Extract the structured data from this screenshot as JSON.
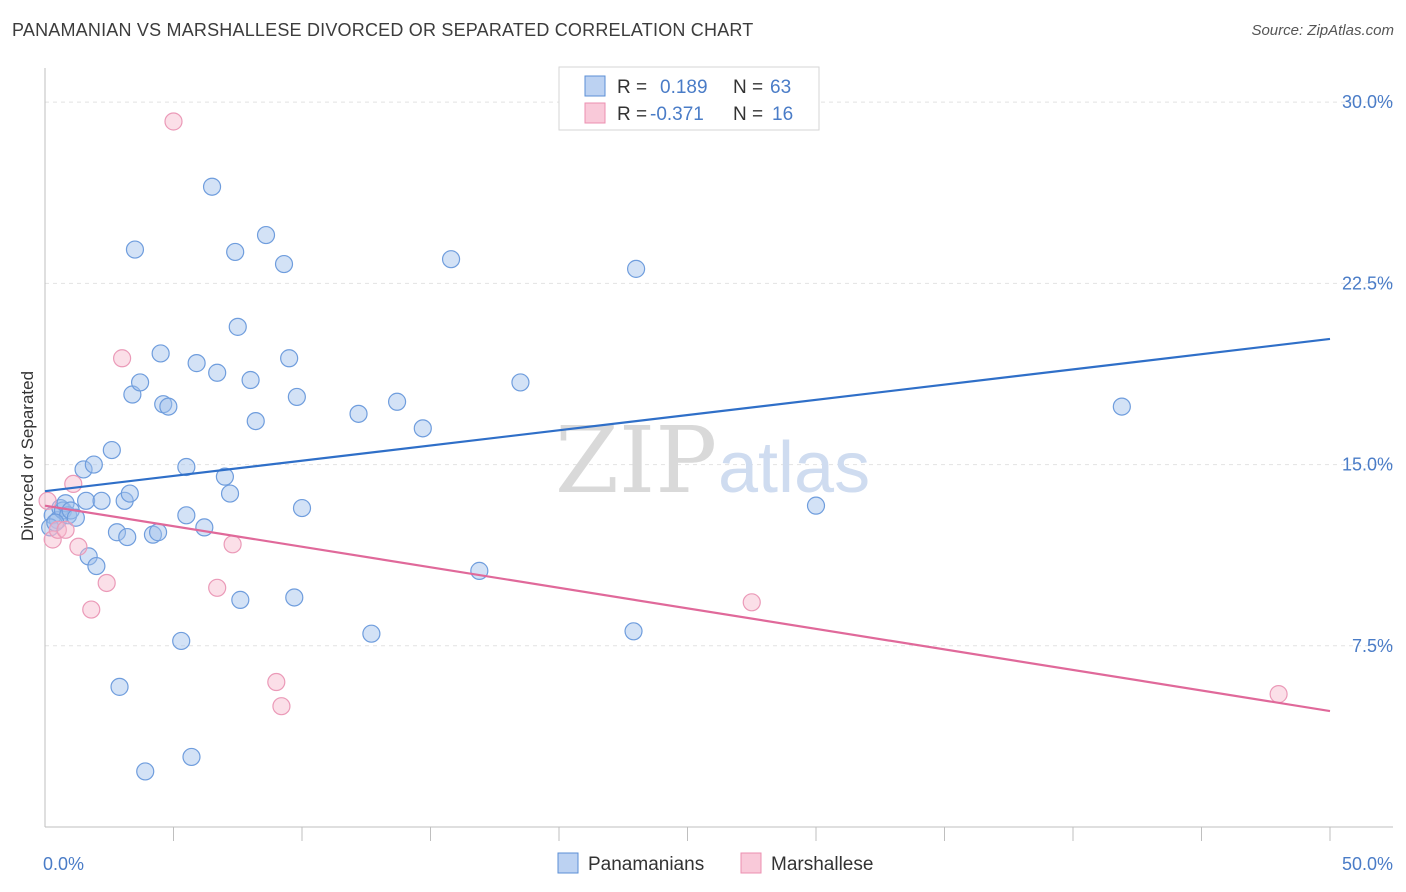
{
  "title": "PANAMANIAN VS MARSHALLESE DIVORCED OR SEPARATED CORRELATION CHART",
  "source": "Source: ZipAtlas.com",
  "colors": {
    "blue": "#5b8fd6",
    "blue_line": "#2f6fc8",
    "pink": "#ec8fb0",
    "pink_line": "#e0699a",
    "label": "#4a7cc7"
  },
  "chart_data": {
    "type": "scatter",
    "xlabel": "",
    "ylabel": "Divorced or Separated",
    "xlim": [
      0,
      50
    ],
    "ylim": [
      0,
      31
    ],
    "x_tick_labels": [
      {
        "value": 0,
        "label": "0.0%"
      },
      {
        "value": 50,
        "label": "50.0%"
      }
    ],
    "y_ticks": [
      {
        "value": 7.5,
        "label": "7.5%"
      },
      {
        "value": 15.0,
        "label": "15.0%"
      },
      {
        "value": 22.5,
        "label": "22.5%"
      },
      {
        "value": 30.0,
        "label": "30.0%"
      }
    ],
    "legend_stats": [
      {
        "r_label": "R =",
        "r": "0.189",
        "n_label": "N =",
        "n": "63"
      },
      {
        "r_label": "R =",
        "r": "-0.371",
        "n_label": "N =",
        "n": "16"
      }
    ],
    "series": [
      {
        "name": "Panamanians",
        "trend": {
          "x0": 0,
          "y0": 13.9,
          "x1": 50,
          "y1": 20.2
        },
        "points": [
          [
            0.3,
            12.9
          ],
          [
            0.5,
            12.7
          ],
          [
            0.6,
            13.2
          ],
          [
            0.7,
            13.1
          ],
          [
            0.8,
            13.4
          ],
          [
            0.9,
            12.9
          ],
          [
            1.0,
            13.1
          ],
          [
            1.2,
            12.8
          ],
          [
            1.5,
            14.8
          ],
          [
            1.6,
            13.5
          ],
          [
            1.7,
            11.2
          ],
          [
            1.9,
            15.0
          ],
          [
            2.0,
            10.8
          ],
          [
            2.2,
            13.5
          ],
          [
            2.6,
            15.6
          ],
          [
            2.8,
            12.2
          ],
          [
            2.9,
            5.8
          ],
          [
            3.1,
            13.5
          ],
          [
            3.2,
            12.0
          ],
          [
            3.3,
            13.8
          ],
          [
            3.4,
            17.9
          ],
          [
            3.5,
            23.9
          ],
          [
            3.7,
            18.4
          ],
          [
            3.9,
            2.3
          ],
          [
            4.2,
            12.1
          ],
          [
            4.4,
            12.2
          ],
          [
            4.5,
            19.6
          ],
          [
            4.6,
            17.5
          ],
          [
            4.8,
            17.4
          ],
          [
            5.3,
            7.7
          ],
          [
            5.5,
            14.9
          ],
          [
            5.5,
            12.9
          ],
          [
            5.7,
            2.9
          ],
          [
            5.9,
            19.2
          ],
          [
            6.2,
            12.4
          ],
          [
            6.5,
            26.5
          ],
          [
            6.7,
            18.8
          ],
          [
            7.0,
            14.5
          ],
          [
            7.2,
            13.8
          ],
          [
            7.4,
            23.8
          ],
          [
            7.5,
            20.7
          ],
          [
            7.6,
            9.4
          ],
          [
            8.0,
            18.5
          ],
          [
            8.2,
            16.8
          ],
          [
            8.6,
            24.5
          ],
          [
            9.3,
            23.3
          ],
          [
            9.5,
            19.4
          ],
          [
            9.7,
            9.5
          ],
          [
            9.8,
            17.8
          ],
          [
            10.0,
            13.2
          ],
          [
            12.2,
            17.1
          ],
          [
            12.7,
            8.0
          ],
          [
            13.7,
            17.6
          ],
          [
            14.7,
            16.5
          ],
          [
            15.8,
            23.5
          ],
          [
            16.9,
            10.6
          ],
          [
            18.5,
            18.4
          ],
          [
            22.9,
            8.1
          ],
          [
            23.0,
            23.1
          ],
          [
            30.0,
            13.3
          ],
          [
            41.9,
            17.4
          ],
          [
            0.2,
            12.4
          ],
          [
            0.4,
            12.6
          ]
        ]
      },
      {
        "name": "Marshallese",
        "trend": {
          "x0": 0,
          "y0": 13.3,
          "x1": 50,
          "y1": 4.8
        },
        "points": [
          [
            0.1,
            13.5
          ],
          [
            0.3,
            11.9
          ],
          [
            0.5,
            12.3
          ],
          [
            0.8,
            12.3
          ],
          [
            1.1,
            14.2
          ],
          [
            1.3,
            11.6
          ],
          [
            1.8,
            9.0
          ],
          [
            2.4,
            10.1
          ],
          [
            3.0,
            19.4
          ],
          [
            5.0,
            29.2
          ],
          [
            6.7,
            9.9
          ],
          [
            7.3,
            11.7
          ],
          [
            9.0,
            6.0
          ],
          [
            9.2,
            5.0
          ],
          [
            27.5,
            9.3
          ],
          [
            48.0,
            5.5
          ]
        ]
      }
    ]
  }
}
